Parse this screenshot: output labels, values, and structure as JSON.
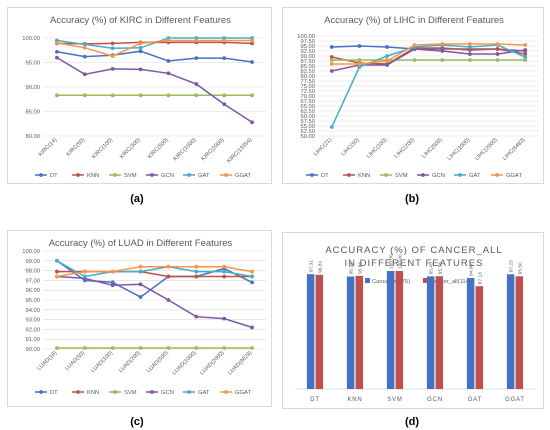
{
  "captions": [
    "(a)",
    "(b)",
    "(c)",
    "(d)"
  ],
  "colors": {
    "DT": "#4472c4",
    "KNN": "#c0504d",
    "SVM": "#9bbb59",
    "GCN": "#7e57a6",
    "GAT": "#4bacc6",
    "GGAT": "#f79646",
    "bar_blue": "#4472c4",
    "bar_red": "#c0504d",
    "grid": "#d9d9d9"
  },
  "chart_data": [
    {
      "type": "line",
      "title": "Accuracy (%) of KIRC in Different Features",
      "categories": [
        "KIRC(14)",
        "KIRC(50)",
        "KIRC(100)",
        "KIRC(300)",
        "KIRC(500)",
        "KIRC(1000)",
        "KIRC(2000)",
        "KIRC(13354)"
      ],
      "ylim": [
        80,
        100
      ],
      "ystep": 5,
      "ydecimals": 2,
      "grid": true,
      "legend": "bottom",
      "series": [
        {
          "name": "DT",
          "values": [
            97.2,
            96.2,
            96.5,
            97.3,
            95.3,
            95.9,
            95.9,
            95.1
          ]
        },
        {
          "name": "KNN",
          "values": [
            98.9,
            98.8,
            98.9,
            99.1,
            99.1,
            99.1,
            99.1,
            98.9
          ]
        },
        {
          "name": "SVM",
          "values": [
            88.3,
            88.3,
            88.3,
            88.3,
            88.3,
            88.3,
            88.3,
            88.3
          ]
        },
        {
          "name": "GCN",
          "values": [
            96.0,
            92.6,
            93.7,
            93.6,
            92.8,
            90.6,
            86.5,
            82.8
          ]
        },
        {
          "name": "GAT",
          "values": [
            99.5,
            98.7,
            97.9,
            98.0,
            100.0,
            100.0,
            100.0,
            100.0
          ]
        },
        {
          "name": "GGAT",
          "values": [
            99.0,
            98.0,
            96.3,
            98.9,
            99.5,
            99.5,
            99.5,
            99.5
          ]
        }
      ]
    },
    {
      "type": "line",
      "title": "Accuracy (%) of LIHC in Different Features",
      "categories": [
        "LIHC(21)",
        "LIHC(50)",
        "LIHC(100)",
        "LIHC(200)",
        "LIHC(500)",
        "LIHC(1000)",
        "LIHC(2000)",
        "LIHC(6483)"
      ],
      "ylim": [
        50,
        100
      ],
      "ystep": 2.5,
      "ydecimals": 2,
      "grid": true,
      "legend": "bottom",
      "series": [
        {
          "name": "DT",
          "values": [
            94.5,
            95.0,
            94.5,
            93.5,
            93.5,
            93.5,
            93.5,
            92.5
          ]
        },
        {
          "name": "KNN",
          "values": [
            89.5,
            86.5,
            86.0,
            94.0,
            94.0,
            93.0,
            93.5,
            91.0
          ]
        },
        {
          "name": "SVM",
          "values": [
            88.0,
            88.0,
            88.0,
            88.0,
            88.0,
            88.0,
            88.0,
            88.0
          ]
        },
        {
          "name": "GCN",
          "values": [
            82.5,
            85.5,
            85.5,
            93.5,
            92.5,
            91.0,
            91.0,
            93.0
          ]
        },
        {
          "name": "GAT",
          "values": [
            54.5,
            84.5,
            90.0,
            94.5,
            95.5,
            94.5,
            95.5,
            89.5
          ]
        },
        {
          "name": "GGAT",
          "values": [
            86.0,
            86.0,
            87.5,
            95.5,
            96.0,
            96.0,
            96.0,
            95.5
          ]
        }
      ]
    },
    {
      "type": "line",
      "title": "Accuracy (%) of LUAD in Different Features",
      "categories": [
        "LUAD(18)",
        "LUAD(50)",
        "LUAD(100)",
        "LUAD(200)",
        "LUAD(500)",
        "LUAD(1000)",
        "LUAD(2000)",
        "LUAD(9629)"
      ],
      "ylim": [
        90,
        100
      ],
      "ystep": 1,
      "ydecimals": 2,
      "grid": true,
      "legend": "bottom",
      "series": [
        {
          "name": "DT",
          "values": [
            99.0,
            97.0,
            96.8,
            95.3,
            97.4,
            97.4,
            98.2,
            96.8
          ]
        },
        {
          "name": "KNN",
          "values": [
            97.9,
            97.9,
            97.9,
            97.9,
            97.4,
            97.4,
            97.4,
            97.4
          ]
        },
        {
          "name": "SVM",
          "values": [
            90.1,
            90.1,
            90.1,
            90.1,
            90.1,
            90.1,
            90.1,
            90.1
          ]
        },
        {
          "name": "GCN",
          "values": [
            97.4,
            97.2,
            96.5,
            96.6,
            95.0,
            93.3,
            93.1,
            92.2
          ]
        },
        {
          "name": "GAT",
          "values": [
            99.0,
            97.4,
            97.9,
            97.9,
            98.4,
            97.9,
            97.9,
            97.4
          ]
        },
        {
          "name": "GGAT",
          "values": [
            97.4,
            97.9,
            97.9,
            98.4,
            98.4,
            98.4,
            98.4,
            97.9
          ]
        }
      ]
    },
    {
      "type": "bar",
      "title": "ACCURACY (%) OF CANCER_ALL IN DIFFERENT FEATURES",
      "categories": [
        "DT",
        "KNN",
        "SVM",
        "GCN",
        "GAT",
        "GGAT"
      ],
      "ylim": [
        0,
        100
      ],
      "grid": false,
      "legend": "top",
      "series": [
        {
          "name": "Cancer_all(75)",
          "values": [
            97.31,
            95.34,
            100.0,
            95.45,
            94.06,
            97.23
          ],
          "labels": [
            "97.31",
            "95.34",
            "100.00",
            "95.45",
            "94.06",
            "97.23"
          ]
        },
        {
          "name": "Cancer_all(114)",
          "values": [
            96.81,
            95.86,
            100.0,
            95.58,
            87.13,
            95.5
          ],
          "labels": [
            "96.81",
            "95.86",
            "100.00",
            "95.58",
            "87.13",
            "95.50"
          ]
        }
      ]
    }
  ]
}
